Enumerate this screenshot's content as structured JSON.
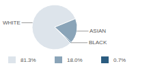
{
  "chart_data": {
    "type": "pie",
    "categories": [
      "WHITE",
      "ASIAN",
      "BLACK"
    ],
    "values": [
      81.3,
      18.0,
      0.7
    ],
    "value_labels": [
      "81.3%",
      "18.0%",
      "0.7%"
    ],
    "colors": [
      "#dde4eb",
      "#8aa4b8",
      "#2b5c80"
    ],
    "legend": "bottom"
  }
}
